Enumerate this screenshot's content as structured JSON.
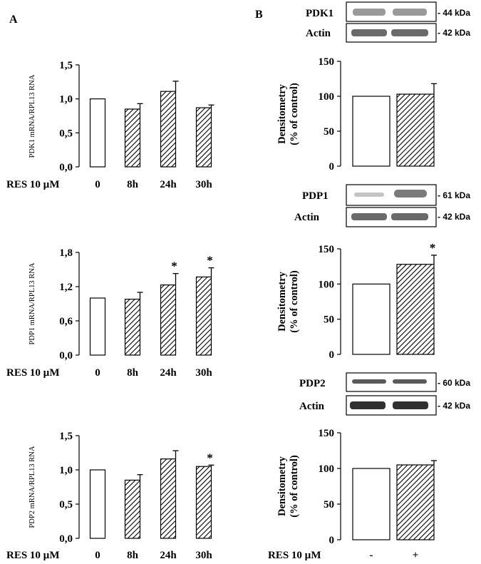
{
  "panels": {
    "a": "A",
    "b": "B"
  },
  "treatment_label": "RES 10 µM",
  "blots": [
    {
      "target": "PDK1",
      "target_kda": "- 44 kDa",
      "loading": "Actin",
      "loading_kda": "- 42 kDa"
    },
    {
      "target": "PDP1",
      "target_kda": "- 61 kDa",
      "loading": "Actin",
      "loading_kda": "- 42 kDa"
    },
    {
      "target": "PDP2",
      "target_kda": "- 60 kDa",
      "loading": "Actin",
      "loading_kda": "- 42 kDa"
    }
  ],
  "chart_data": [
    {
      "type": "bar",
      "categories": [
        "0",
        "8h",
        "24h",
        "30h"
      ],
      "values": [
        1.0,
        0.85,
        1.11,
        0.87
      ],
      "errors": [
        0,
        0.08,
        0.15,
        0.04
      ],
      "significant": [
        false,
        false,
        false,
        false
      ],
      "ylabel": "PDK1 mRNA/RPL13 RNA",
      "ylim": [
        0,
        1.5
      ],
      "yticks": [
        "0,0",
        "0,5",
        "1,0",
        "1,5"
      ],
      "ytick_values": [
        0,
        0.5,
        1.0,
        1.5
      ],
      "grid": false
    },
    {
      "type": "bar",
      "categories": [
        "0",
        "8h",
        "24h",
        "30h"
      ],
      "values": [
        1.0,
        0.98,
        1.23,
        1.37
      ],
      "errors": [
        0,
        0.12,
        0.2,
        0.16
      ],
      "significant": [
        false,
        false,
        true,
        true
      ],
      "ylabel": "PDP1 mRNA/RPL13 RNA",
      "ylim": [
        0,
        1.8
      ],
      "yticks": [
        "0,0",
        "0,6",
        "1,2",
        "1,8"
      ],
      "ytick_values": [
        0,
        0.6,
        1.2,
        1.8
      ],
      "grid": false
    },
    {
      "type": "bar",
      "categories": [
        "0",
        "8h",
        "24h",
        "30h"
      ],
      "values": [
        1.0,
        0.85,
        1.16,
        1.05
      ],
      "errors": [
        0,
        0.08,
        0.12,
        0.02
      ],
      "significant": [
        false,
        false,
        false,
        true
      ],
      "ylabel": "PDP2 mRNA/RPL13 RNA",
      "ylim": [
        0,
        1.5
      ],
      "yticks": [
        "0,0",
        "0,5",
        "1,0",
        "1,5"
      ],
      "ytick_values": [
        0,
        0.5,
        1.0,
        1.5
      ],
      "grid": false
    },
    {
      "type": "bar",
      "categories": [
        "",
        ""
      ],
      "values": [
        100,
        103
      ],
      "errors": [
        0,
        15
      ],
      "significant": [
        false,
        false
      ],
      "ylabel_lines": [
        "Densitometry",
        "(% of control)"
      ],
      "ylim": [
        0,
        150
      ],
      "yticks": [
        "0",
        "50",
        "100",
        "150"
      ],
      "ytick_values": [
        0,
        50,
        100,
        150
      ],
      "grid": false
    },
    {
      "type": "bar",
      "categories": [
        "",
        ""
      ],
      "values": [
        100,
        128
      ],
      "errors": [
        0,
        13
      ],
      "significant": [
        false,
        true
      ],
      "ylabel_lines": [
        "Densitometry",
        "(% of control)"
      ],
      "ylim": [
        0,
        150
      ],
      "yticks": [
        "0",
        "50",
        "100",
        "150"
      ],
      "ytick_values": [
        0,
        50,
        100,
        150
      ],
      "grid": false
    },
    {
      "type": "bar",
      "categories": [
        "-",
        "+"
      ],
      "values": [
        100,
        105
      ],
      "errors": [
        0,
        6
      ],
      "significant": [
        false,
        false
      ],
      "ylabel_lines": [
        "Densitometry",
        "(% of control)"
      ],
      "ylim": [
        0,
        150
      ],
      "yticks": [
        "0",
        "50",
        "100",
        "150"
      ],
      "ytick_values": [
        0,
        50,
        100,
        150
      ],
      "grid": false
    }
  ]
}
